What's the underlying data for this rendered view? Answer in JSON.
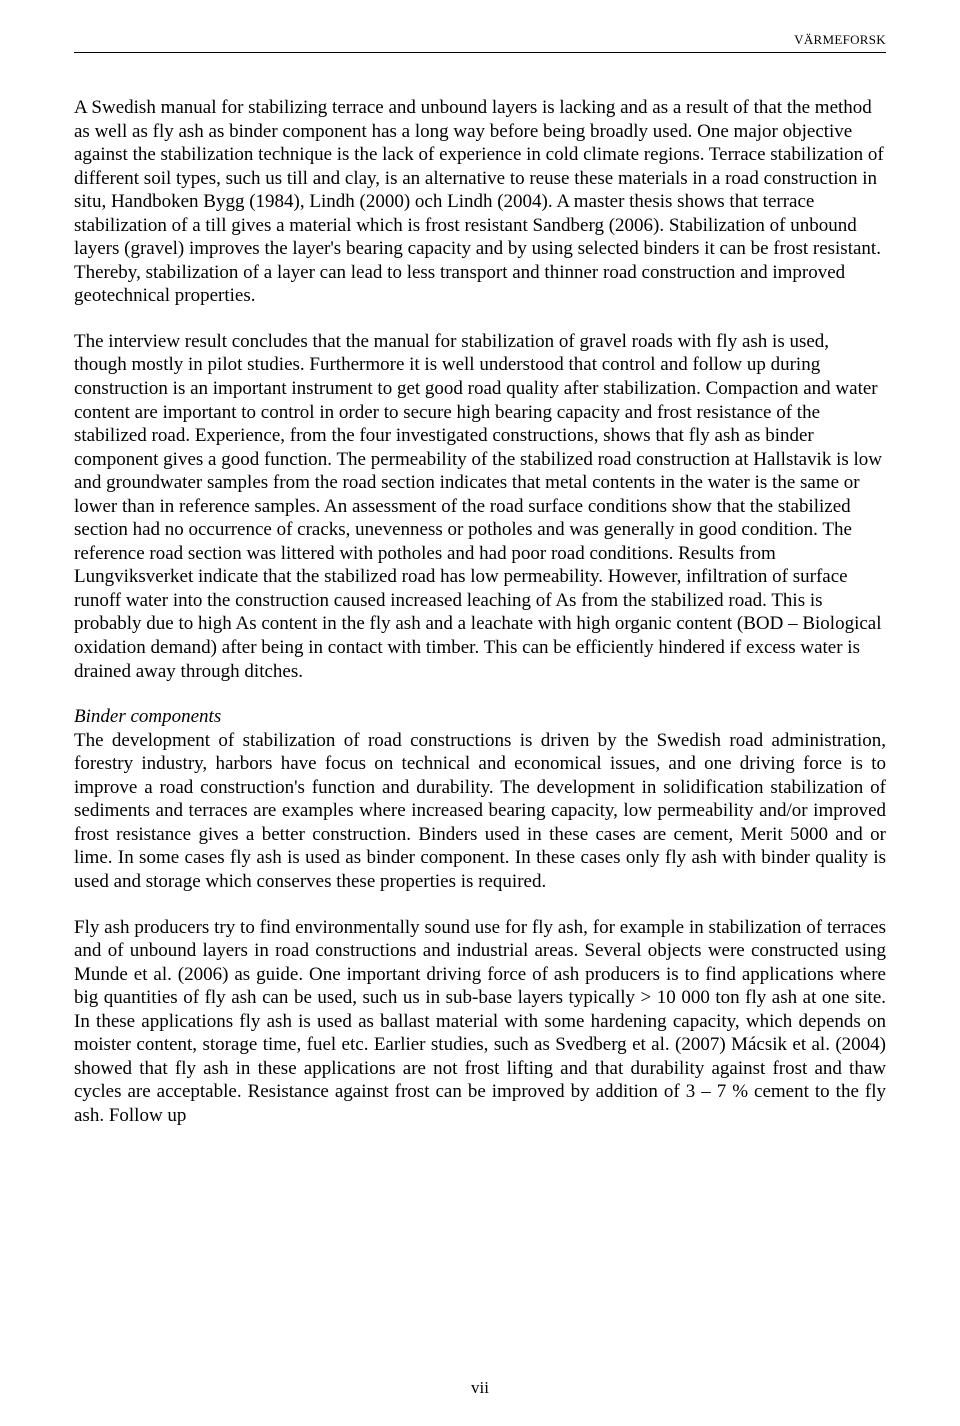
{
  "header": {
    "right_label": "VÄRMEFORSK"
  },
  "paragraphs": {
    "p1": "A Swedish manual for stabilizing terrace and unbound layers is lacking and as a result of that the method as well as fly ash as binder component has a long way before being broadly used. One major objective against the stabilization technique is the lack of experience in cold climate regions. Terrace stabilization of different soil types, such us till and clay, is an alternative to reuse these materials in a road construction in situ, Handboken Bygg (1984), Lindh (2000) och Lindh (2004). A master thesis shows that terrace stabilization of a till gives a material which is frost resistant Sandberg (2006). Stabilization of unbound layers (gravel) improves the layer's bearing capacity and by using selected binders it can be frost resistant. Thereby, stabilization of a layer can lead to less transport and thinner road construction and improved geotechnical properties.",
    "p2": "The interview result concludes that the manual for stabilization of gravel roads with fly ash is used, though mostly in pilot studies. Furthermore it is well understood that control and follow up during construction is an important instrument to get good road quality after stabilization. Compaction and water content are important to control in order to secure high bearing capacity and frost resistance of the stabilized road. Experience, from the four investigated constructions, shows that fly ash as binder component gives a good function. The permeability of the stabilized road construction at Hallstavik is low and groundwater samples from the road section indicates that metal contents in the water is the same or lower than in reference samples. An assessment of the road surface conditions show that the stabilized section had no occurrence of cracks, unevenness or potholes and was generally in good condition. The reference road section was littered with potholes and had poor road conditions. Results from Lungviksverket indicate that the stabilized road has low permeability. However, infiltration of surface runoff water into the construction caused increased leaching of As from the stabilized road. This is probably due to high As content in the fly ash and a leachate with high organic content (BOD – Biological oxidation demand) after being in contact with timber. This can be efficiently hindered if excess water is drained away through ditches.",
    "section_title": "Binder components",
    "p3": "The development of stabilization of road constructions is driven by the Swedish road administration, forestry industry, harbors have focus on technical and economical issues, and one driving force is to improve a road construction's function and durability. The development in solidification stabilization of sediments and terraces are examples where increased bearing capacity, low permeability and/or improved frost resistance gives a better construction. Binders used in these cases are cement, Merit 5000 and or lime. In some cases fly ash is used as binder component. In these cases only fly ash with binder quality is used and storage which conserves these properties is required.",
    "p4": "Fly ash producers try to find environmentally sound use for fly ash, for example in stabilization of terraces and of unbound layers in road constructions and industrial areas. Several objects were constructed using Munde et al. (2006) as guide. One important driving force of ash producers is to find applications where big quantities of fly ash can be used, such us in sub-base layers typically > 10 000 ton fly ash at one site. In these applications fly ash is used as ballast material with some hardening capacity, which depends on moister content, storage time, fuel etc. Earlier studies, such as Svedberg et al. (2007) Mácsik et al. (2004) showed that fly ash in these applications are not frost lifting and that durability against frost and thaw cycles are acceptable. Resistance against frost can be improved by addition of 3 – 7 % cement to the fly ash. Follow up"
  },
  "page_number": "vii"
}
